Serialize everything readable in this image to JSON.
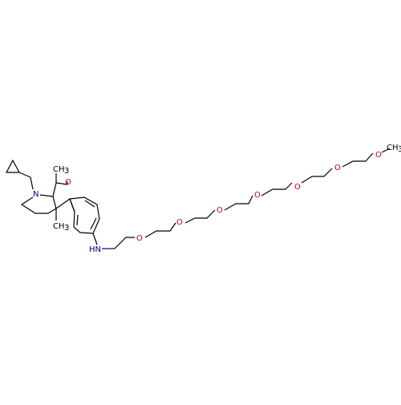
{
  "molecule": {
    "colors": {
      "bond": "#000000",
      "oxygen": "#cc0000",
      "nitrogen": "#000080",
      "carbon": "#000000"
    },
    "labels": {
      "n_ring": "N",
      "o_ketone": "O",
      "me_top": "CH",
      "me_top_sub": "3",
      "me_bottom": "CH",
      "me_bottom_sub": "3",
      "nh": "HN",
      "o1": "O",
      "o2": "O",
      "o3": "O",
      "o4": "O",
      "o5": "O",
      "o6": "O",
      "o7": "O",
      "ch3_end": "CH",
      "ch3_end_sub": "3"
    }
  }
}
